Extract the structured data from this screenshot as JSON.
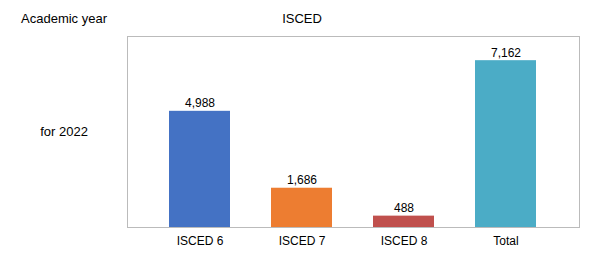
{
  "chart_data": {
    "type": "bar",
    "categories": [
      "ISCED 6",
      "ISCED 7",
      "ISCED 8",
      "Total"
    ],
    "values": [
      4988,
      1686,
      488,
      7162
    ],
    "value_labels": [
      "4,988",
      "1,686",
      "488",
      "7,162"
    ],
    "colors": [
      "#4472C4",
      "#ED7D31",
      "#C0504D",
      "#4BACC6"
    ],
    "data_labels": true,
    "annotations": [
      "Academic year",
      "ISCED",
      "for 2022"
    ],
    "ylim": [
      0,
      8200
    ],
    "yticks": [],
    "grid": false,
    "tick_labels": "x"
  }
}
